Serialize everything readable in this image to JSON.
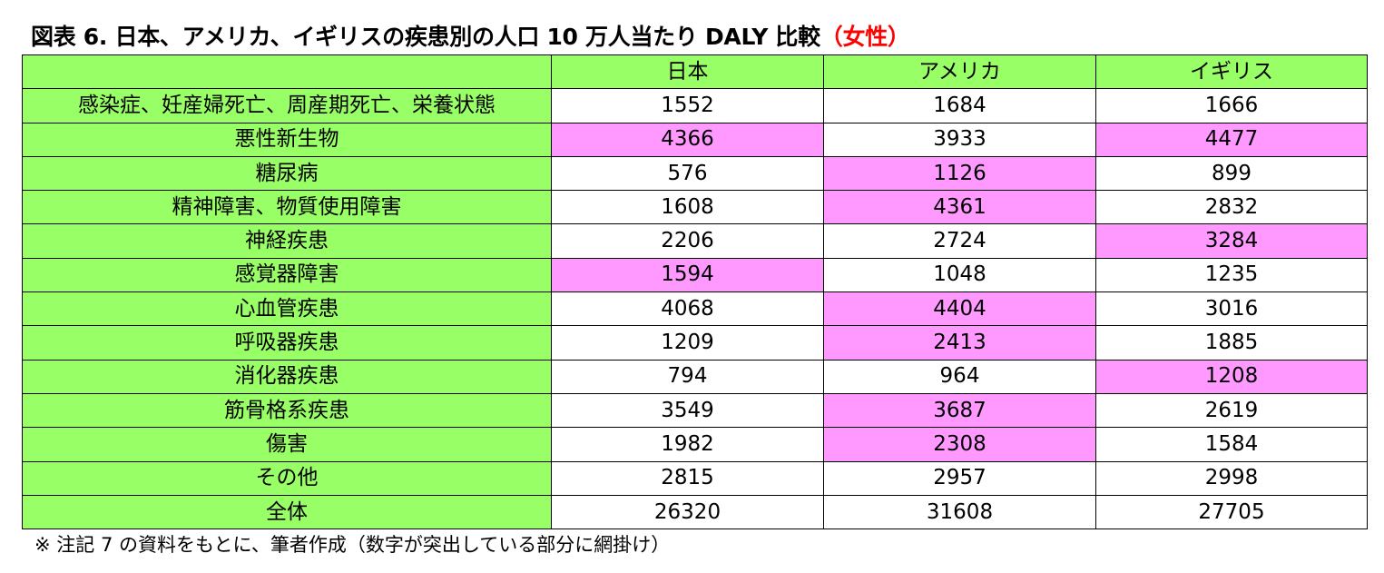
{
  "title": {
    "main": "図表 6.  日本、アメリカ、イギリスの疾患別の人口 10 万人当たり DALY 比較",
    "accent": "（女性）"
  },
  "table": {
    "columns": [
      "日本",
      "アメリカ",
      "イギリス"
    ],
    "rows": [
      {
        "label": "感染症、妊産婦死亡、周産期死亡、栄養状態",
        "values": [
          "1552",
          "1684",
          "1666"
        ],
        "highlight": [
          false,
          false,
          false
        ]
      },
      {
        "label": "悪性新生物",
        "values": [
          "4366",
          "3933",
          "4477"
        ],
        "highlight": [
          true,
          false,
          true
        ]
      },
      {
        "label": "糖尿病",
        "values": [
          "576",
          "1126",
          "899"
        ],
        "highlight": [
          false,
          true,
          false
        ]
      },
      {
        "label": "精神障害、物質使用障害",
        "values": [
          "1608",
          "4361",
          "2832"
        ],
        "highlight": [
          false,
          true,
          false
        ]
      },
      {
        "label": "神経疾患",
        "values": [
          "2206",
          "2724",
          "3284"
        ],
        "highlight": [
          false,
          false,
          true
        ]
      },
      {
        "label": "感覚器障害",
        "values": [
          "1594",
          "1048",
          "1235"
        ],
        "highlight": [
          true,
          false,
          false
        ]
      },
      {
        "label": "心血管疾患",
        "values": [
          "4068",
          "4404",
          "3016"
        ],
        "highlight": [
          false,
          true,
          false
        ]
      },
      {
        "label": "呼吸器疾患",
        "values": [
          "1209",
          "2413",
          "1885"
        ],
        "highlight": [
          false,
          true,
          false
        ]
      },
      {
        "label": "消化器疾患",
        "values": [
          "794",
          "964",
          "1208"
        ],
        "highlight": [
          false,
          false,
          true
        ]
      },
      {
        "label": "筋骨格系疾患",
        "values": [
          "3549",
          "3687",
          "2619"
        ],
        "highlight": [
          false,
          true,
          false
        ]
      },
      {
        "label": "傷害",
        "values": [
          "1982",
          "2308",
          "1584"
        ],
        "highlight": [
          false,
          true,
          false
        ]
      },
      {
        "label": "その他",
        "values": [
          "2815",
          "2957",
          "2998"
        ],
        "highlight": [
          false,
          false,
          false
        ]
      },
      {
        "label": "全体",
        "values": [
          "26320",
          "31608",
          "27705"
        ],
        "highlight": [
          false,
          false,
          false
        ]
      }
    ]
  },
  "colors": {
    "header_green": "#99ff66",
    "highlight_pink": "#ff99ff",
    "title_accent": "#ff0000"
  },
  "note": "※ 注記 7 の資料をもとに、筆者作成（数字が突出している部分に網掛け）"
}
